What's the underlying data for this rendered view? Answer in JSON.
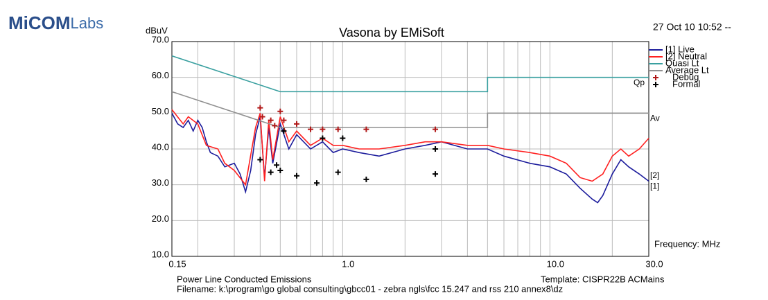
{
  "logo": {
    "main": "MiCOM",
    "sub": "Labs"
  },
  "date": "27 Oct 10 10:52 --",
  "footer": {
    "left": "Power Line Conducted Emissions",
    "template": "Template: CISPR22B ACMains",
    "filename": "Filename: k:\\program\\go global consulting\\gbcc01 - zebra ngls\\fcc 15.247 and rss 210 annex8\\dz"
  },
  "chart_data": {
    "type": "line",
    "title": "Vasona by EMiSoft",
    "y_label": "dBuV",
    "x_label": "Frequency: MHz",
    "xscale": "log",
    "xlim": [
      0.15,
      30
    ],
    "ylim": [
      10,
      70
    ],
    "xticks": [
      0.15,
      {
        "value": 1,
        "label": "1.0"
      },
      {
        "value": 10,
        "label": "10.0"
      },
      {
        "value": 30,
        "label": "30.0"
      }
    ],
    "xgrid": [
      0.2,
      0.3,
      0.4,
      0.5,
      0.6,
      0.7,
      0.8,
      0.9,
      2,
      3,
      4,
      5,
      6,
      7,
      8,
      9,
      20
    ],
    "yticks": [
      {
        "value": 70,
        "label": "70.0"
      },
      {
        "value": 60,
        "label": "60.0"
      },
      {
        "value": 50,
        "label": "50.0"
      },
      {
        "value": 40,
        "label": "40.0"
      },
      {
        "value": 30,
        "label": "30.0"
      },
      {
        "value": 20,
        "label": "20.0"
      },
      {
        "value": 10,
        "label": "10.0"
      }
    ],
    "grid": true,
    "legend": "right",
    "annotations": [
      {
        "text": "Qp",
        "x": 30,
        "y": 60
      },
      {
        "text": "Av",
        "x": 30,
        "y": 50
      },
      {
        "text": "[2]",
        "x": 30,
        "y": 34
      },
      {
        "text": "[1]",
        "x": 30,
        "y": 31
      }
    ],
    "series": [
      {
        "name": "[1] Live",
        "color": "#1c1c9c",
        "type": "line",
        "x": [
          0.15,
          0.16,
          0.17,
          0.18,
          0.19,
          0.2,
          0.21,
          0.22,
          0.23,
          0.25,
          0.27,
          0.3,
          0.32,
          0.34,
          0.36,
          0.38,
          0.4,
          0.42,
          0.44,
          0.46,
          0.5,
          0.55,
          0.6,
          0.7,
          0.8,
          0.9,
          1,
          1.2,
          1.5,
          2,
          2.5,
          3,
          4,
          5,
          6,
          8,
          10,
          12,
          14,
          16,
          17,
          18,
          20,
          22,
          24,
          27,
          30
        ],
        "values": [
          50,
          47,
          46,
          48,
          45,
          48,
          46,
          42,
          39,
          38,
          35,
          36,
          33,
          28,
          34,
          44,
          49,
          32,
          46,
          36,
          47,
          40,
          44,
          40,
          42,
          39,
          40,
          39,
          38,
          40,
          41,
          42,
          40,
          40,
          38,
          36,
          35,
          33,
          29,
          26,
          25,
          27,
          33,
          37,
          35,
          33,
          31
        ]
      },
      {
        "name": "[2] Neutral",
        "color": "#ff2020",
        "type": "line",
        "x": [
          0.15,
          0.17,
          0.18,
          0.2,
          0.22,
          0.25,
          0.27,
          0.3,
          0.34,
          0.38,
          0.4,
          0.42,
          0.44,
          0.46,
          0.5,
          0.55,
          0.6,
          0.7,
          0.8,
          0.9,
          1,
          1.2,
          1.5,
          2,
          2.5,
          3,
          4,
          5,
          6,
          8,
          10,
          12,
          14,
          16,
          18,
          20,
          22,
          24,
          27,
          30
        ],
        "values": [
          51,
          47,
          49,
          47,
          41,
          40,
          36,
          34,
          30,
          46,
          50,
          31,
          48,
          37,
          49,
          42,
          45,
          41,
          43,
          41,
          41,
          40,
          40,
          41,
          42,
          42,
          41,
          41,
          40,
          39,
          38,
          36,
          32,
          31,
          33,
          38,
          40,
          38,
          40,
          43
        ]
      },
      {
        "name": "Quasi Lt",
        "color": "#3aa0a0",
        "type": "line",
        "x": [
          0.15,
          0.5,
          5,
          5,
          30
        ],
        "values": [
          66,
          56,
          56,
          60,
          60
        ]
      },
      {
        "name": "Average Lt",
        "color": "#909090",
        "type": "line",
        "x": [
          0.15,
          0.5,
          5,
          5,
          30
        ],
        "values": [
          56,
          46,
          46,
          50,
          50
        ]
      },
      {
        "name": "Debug",
        "color": "#b01818",
        "type": "scatter",
        "x": [
          0.4,
          0.41,
          0.45,
          0.47,
          0.5,
          0.52,
          0.6,
          0.7,
          0.8,
          0.95,
          1.3,
          2.8
        ],
        "values": [
          51.5,
          49,
          48,
          46.5,
          50.5,
          48,
          47,
          45.5,
          45.5,
          45.5,
          45.5,
          45.5
        ]
      },
      {
        "name": "Formal",
        "color": "#000000",
        "type": "scatter",
        "x": [
          0.4,
          0.45,
          0.48,
          0.5,
          0.52,
          0.6,
          0.75,
          0.8,
          0.95,
          1,
          1.3,
          2.8,
          2.8
        ],
        "values": [
          37,
          33.5,
          35.5,
          34,
          45,
          32.5,
          30.5,
          43,
          33.5,
          43,
          31.5,
          33,
          40
        ]
      }
    ]
  }
}
